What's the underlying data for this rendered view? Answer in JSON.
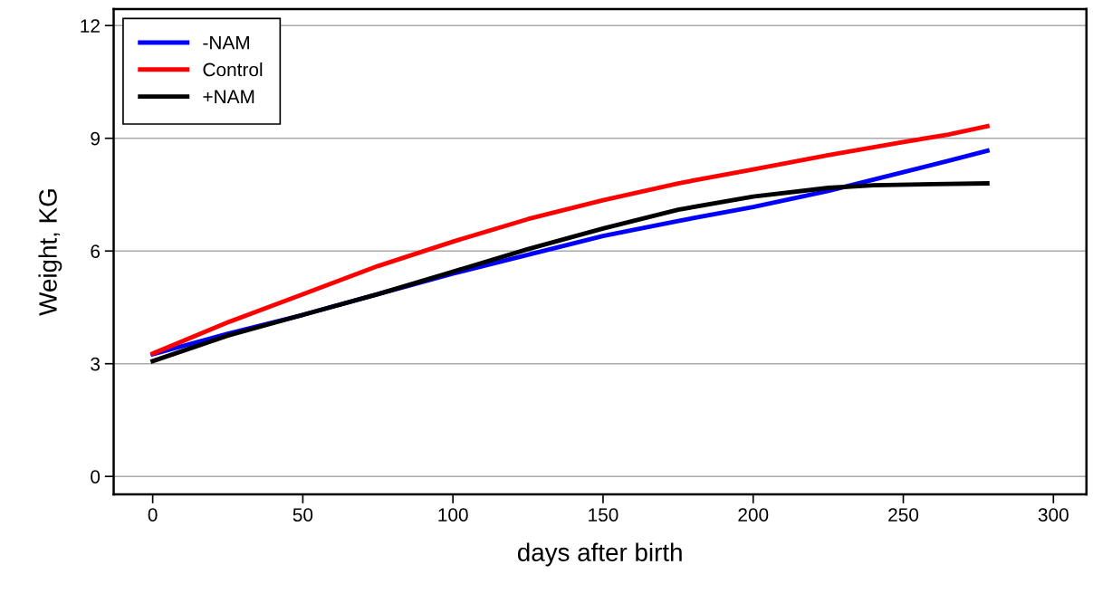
{
  "chart_data": {
    "type": "line",
    "xlabel": "days after birth",
    "ylabel": "Weight, KG",
    "xlim": [
      -13,
      311
    ],
    "ylim": [
      -0.48,
      12.44
    ],
    "xticks": [
      0,
      50,
      100,
      150,
      200,
      250,
      300
    ],
    "yticks": [
      0,
      3,
      6,
      9,
      12
    ],
    "grid": "y",
    "legend": "top left",
    "marker": "none",
    "line_style": "solid",
    "series": [
      {
        "name": "-NAM",
        "color": "#0000ff",
        "x": [
          0,
          25,
          50,
          75,
          100,
          125,
          150,
          175,
          200,
          225,
          250,
          265,
          278
        ],
        "values": [
          3.25,
          3.8,
          4.3,
          4.85,
          5.4,
          5.9,
          6.4,
          6.8,
          7.17,
          7.6,
          8.1,
          8.4,
          8.67
        ]
      },
      {
        "name": "Control",
        "color": "#ff0000",
        "x": [
          0,
          25,
          50,
          75,
          100,
          125,
          150,
          175,
          200,
          225,
          250,
          265,
          278
        ],
        "values": [
          3.27,
          4.1,
          4.85,
          5.6,
          6.25,
          6.85,
          7.35,
          7.8,
          8.17,
          8.55,
          8.9,
          9.1,
          9.32
        ]
      },
      {
        "name": "+NAM",
        "color": "#000000",
        "x": [
          0,
          25,
          50,
          75,
          100,
          125,
          150,
          175,
          200,
          225,
          240,
          260,
          278
        ],
        "values": [
          3.07,
          3.75,
          4.3,
          4.85,
          5.45,
          6.05,
          6.6,
          7.1,
          7.45,
          7.68,
          7.75,
          7.78,
          7.8
        ]
      }
    ]
  }
}
